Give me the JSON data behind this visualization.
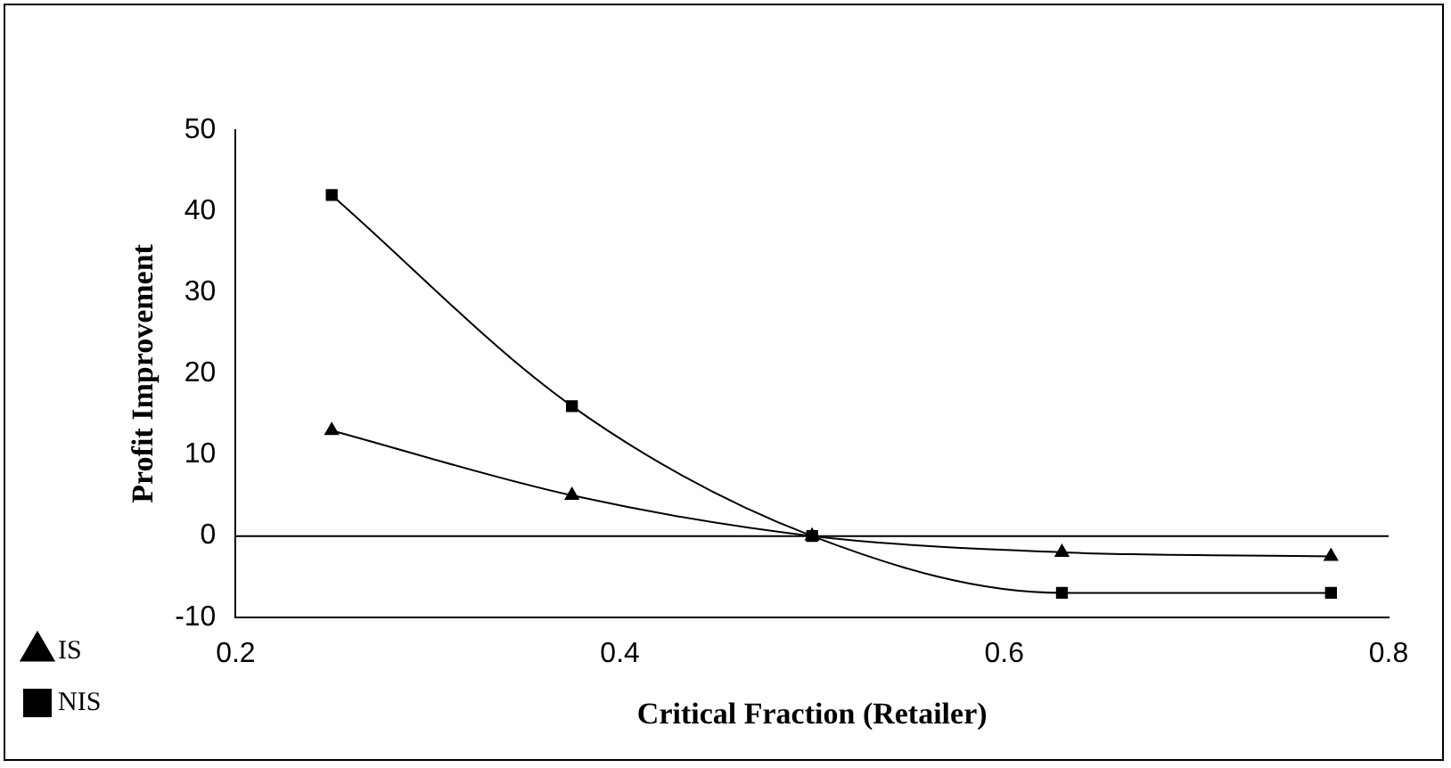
{
  "chart_data": {
    "type": "line",
    "xlabel": "Critical Fraction (Retailer)",
    "ylabel": "Profit Improvement",
    "x": [
      0.25,
      0.375,
      0.5,
      0.63,
      0.77
    ],
    "series": [
      {
        "name": "IS",
        "color": "#000000",
        "marker": "triangle",
        "values": [
          13,
          5,
          0,
          -2,
          -2.5
        ]
      },
      {
        "name": "NIS",
        "color": "#000000",
        "marker": "square",
        "values": [
          42,
          16,
          0,
          -7,
          -7
        ]
      }
    ],
    "xlim": [
      0.2,
      0.8
    ],
    "xticks": [
      0.2,
      0.4,
      0.6,
      0.8
    ],
    "ylim": [
      -10,
      50
    ],
    "yticks": [
      -10,
      0,
      10,
      20,
      30,
      40,
      50
    ],
    "grid": false,
    "legend": "bottom left",
    "ref_lines": [
      {
        "axis": "y",
        "value": 0,
        "color": "#000000"
      }
    ]
  }
}
